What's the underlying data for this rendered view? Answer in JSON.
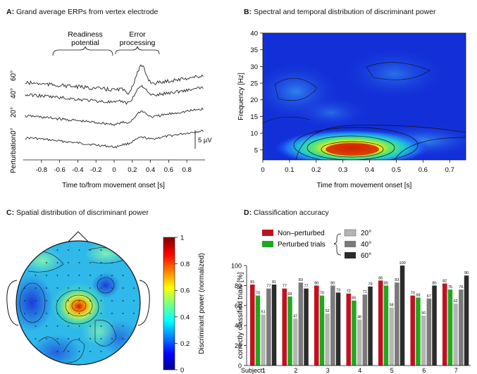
{
  "panels": {
    "a": {
      "letter": "A:",
      "title": "Grand average ERPs from vertex electrode"
    },
    "b": {
      "letter": "B:",
      "title": "Spectral and temporal distribution of discriminant power"
    },
    "c": {
      "letter": "C:",
      "title": "Spatial distribution of discriminant power"
    },
    "d": {
      "letter": "D:",
      "title": "Classification accuracy"
    }
  },
  "colors": {
    "non_perturbed": "#c0121e",
    "perturbed": "#1fa81f",
    "deg20": "#b5b5b5",
    "deg40": "#7a7a7a",
    "deg60": "#2b2b2b"
  },
  "chart_data": [
    {
      "id": "A",
      "type": "line",
      "xlabel": "Time to/from movement onset [s]",
      "ylabel": "Perturbation:",
      "xticks": [
        "-0.8",
        "-0.6",
        "-0.4",
        "-0.2",
        "0",
        "0.2",
        "0.4",
        "0.6",
        "0.8"
      ],
      "xlim": [
        -1.0,
        1.0
      ],
      "series": [
        {
          "name": "0°"
        },
        {
          "name": "20°"
        },
        {
          "name": "40°"
        },
        {
          "name": "60°"
        }
      ],
      "annotations": [
        "Readiness potential",
        "Error processing"
      ],
      "scalebar": "5 µV"
    },
    {
      "id": "B",
      "type": "heatmap",
      "xlabel": "Time from movement onset [s]",
      "ylabel": "Frequency [Hz]",
      "xticks": [
        "0",
        "0.1",
        "0.2",
        "0.3",
        "0.4",
        "0.5",
        "0.6",
        "0.7"
      ],
      "yticks": [
        "5",
        "10",
        "15",
        "20",
        "25",
        "30",
        "35",
        "40"
      ],
      "xlim": [
        0,
        0.76
      ],
      "ylim": [
        2,
        40
      ],
      "peak": {
        "x": 0.34,
        "y": 5.0
      }
    },
    {
      "id": "C",
      "type": "heatmap",
      "colorbar_label": "Discriminant power (normalized)",
      "colorbar_ticks": [
        "0",
        "0.2",
        "0.4",
        "0.6",
        "0.8",
        "1"
      ],
      "peak": "central"
    },
    {
      "id": "D",
      "type": "bar",
      "ylabel": "correctly classified trials [%]",
      "ylim": [
        0,
        100
      ],
      "yticks": [
        "0",
        "20",
        "40",
        "60",
        "80",
        "100"
      ],
      "xprefix": "Subject:",
      "categories": [
        "1",
        "2",
        "3",
        "4",
        "5",
        "6",
        "7"
      ],
      "legend": [
        "Non–perturbed",
        "Perturbed trials",
        "20°",
        "40°",
        "60°"
      ],
      "series": [
        {
          "name": "Non–perturbed",
          "values": [
            81,
            77,
            80,
            72,
            85,
            70,
            82
          ]
        },
        {
          "name": "Perturbed trials",
          "values": [
            70,
            69,
            70,
            65,
            80,
            68,
            76
          ]
        },
        {
          "name": "20°",
          "values": [
            51,
            47,
            52,
            46,
            58,
            50,
            62
          ]
        },
        {
          "name": "40°",
          "values": [
            77,
            83,
            80,
            71,
            83,
            67,
            76
          ]
        },
        {
          "name": "60°",
          "values": [
            81,
            77,
            73,
            79,
            100,
            80,
            90
          ]
        }
      ]
    }
  ]
}
